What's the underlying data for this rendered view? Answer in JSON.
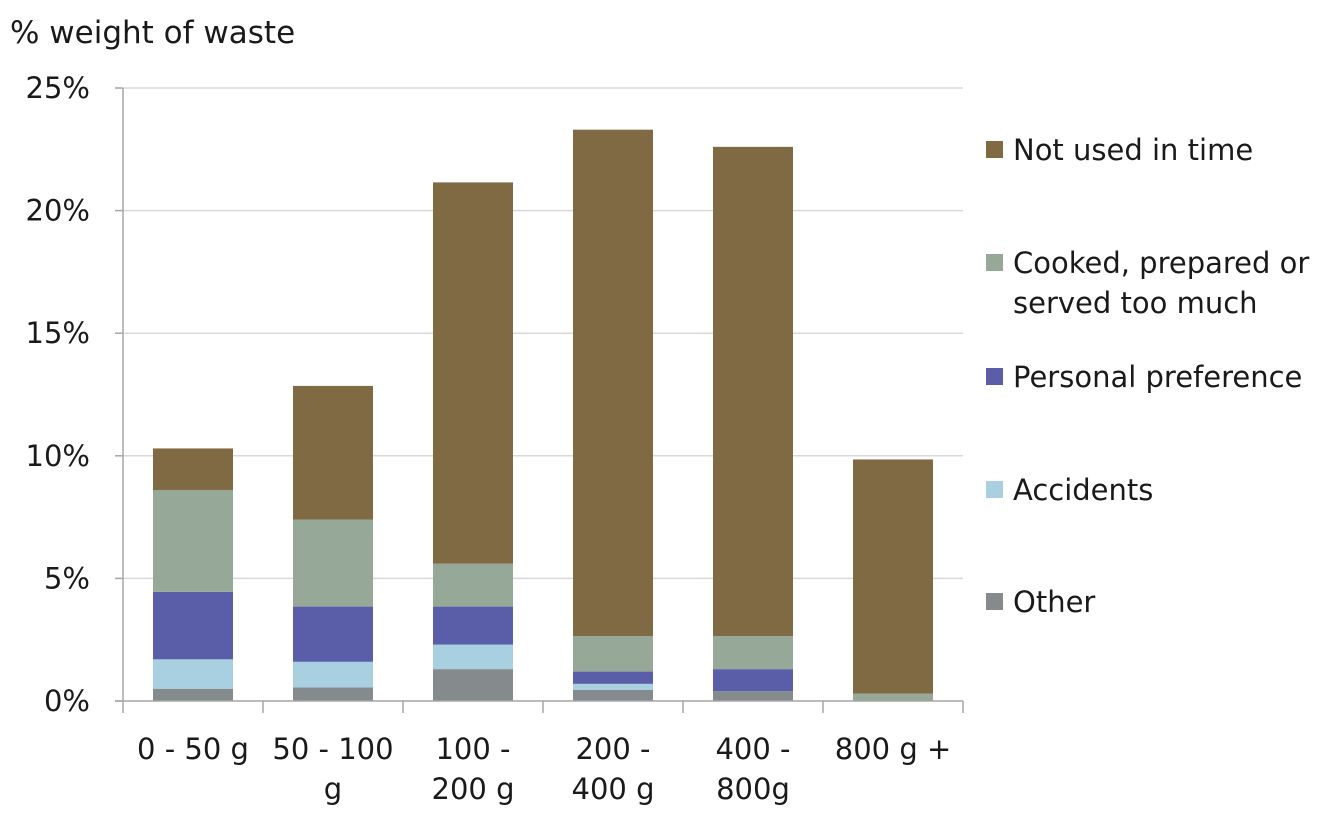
{
  "chart_data": {
    "type": "bar",
    "stacked": true,
    "title": "",
    "ylabel": "% weight of waste",
    "xlabel": "",
    "ylim": [
      0,
      25
    ],
    "yticks": [
      0,
      5,
      10,
      15,
      20,
      25
    ],
    "ytick_labels": [
      "0%",
      "5%",
      "10%",
      "15%",
      "20%",
      "25%"
    ],
    "grid": true,
    "legend_position": "right",
    "categories": [
      "0 - 50 g",
      "50 - 100 g",
      "100 - 200 g",
      "200 - 400 g",
      "400 - 800g",
      "800 g +"
    ],
    "category_label_lines": [
      [
        "0 - 50 g"
      ],
      [
        "50 - 100",
        "g"
      ],
      [
        "100 -",
        "200 g"
      ],
      [
        "200 -",
        "400 g"
      ],
      [
        "400 -",
        "800g"
      ],
      [
        "800 g +"
      ]
    ],
    "series": [
      {
        "name": "Other",
        "color": "#858b8c",
        "values": [
          0.5,
          0.55,
          1.3,
          0.45,
          0.4,
          0.0
        ]
      },
      {
        "name": "Accidents",
        "color": "#a9d0e0",
        "values": [
          1.2,
          1.05,
          1.0,
          0.25,
          0.0,
          0.0
        ]
      },
      {
        "name": "Personal preference",
        "color": "#5a5ea8",
        "values": [
          2.75,
          2.25,
          1.55,
          0.5,
          0.9,
          0.0
        ]
      },
      {
        "name": "Cooked, prepared or served too much",
        "color": "#96a898",
        "values": [
          4.15,
          3.55,
          1.75,
          1.45,
          1.35,
          0.3
        ]
      },
      {
        "name": "Not used in time",
        "color": "#806a43",
        "values": [
          1.7,
          5.45,
          15.55,
          20.65,
          19.95,
          9.55
        ]
      }
    ],
    "legend_order": [
      "Not used in time",
      "Cooked, prepared or served too much",
      "Personal preference",
      "Accidents",
      "Other"
    ],
    "legend_label_lines": [
      [
        "Not used in time"
      ],
      [
        "Cooked, prepared or",
        "served too much"
      ],
      [
        "Personal preference"
      ],
      [
        "Accidents"
      ],
      [
        "Other"
      ]
    ],
    "colors": {
      "grid": "#d9d9d9",
      "axis": "#a6a6a6",
      "text": "#1a1a1a"
    }
  }
}
